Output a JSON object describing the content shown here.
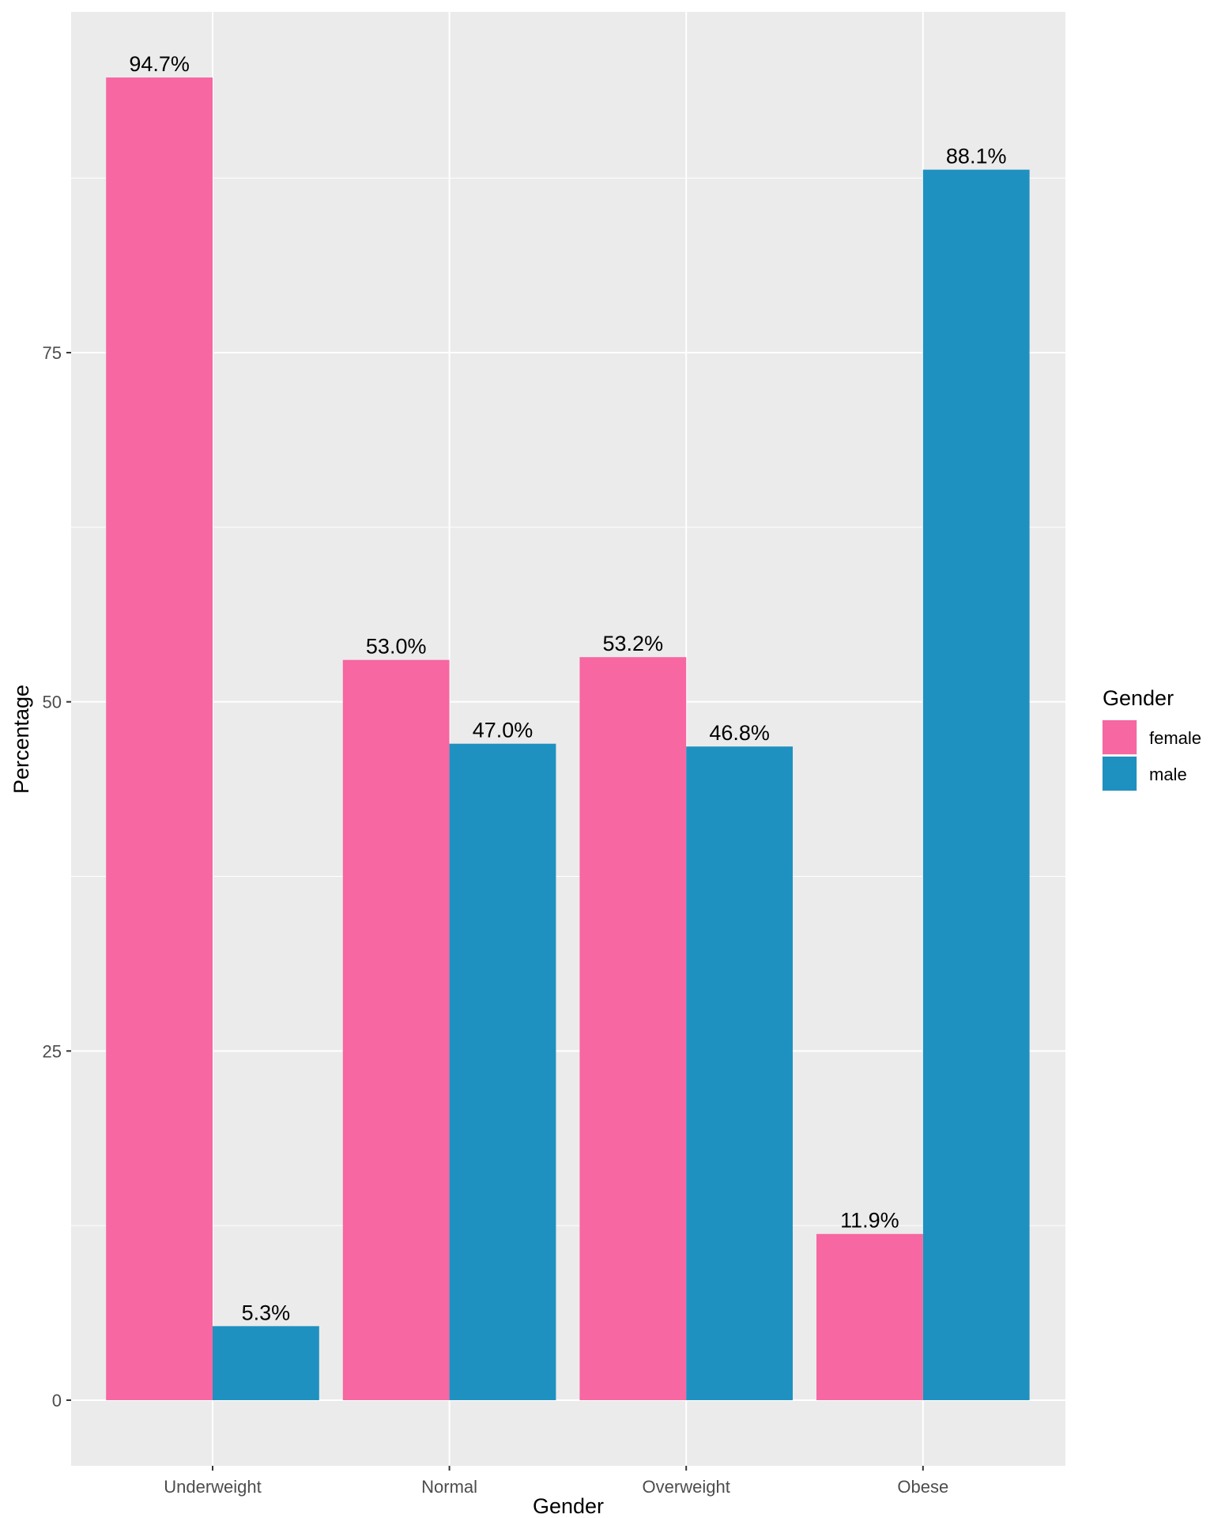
{
  "chart_data": {
    "type": "bar",
    "title": "",
    "xlabel": "Gender",
    "ylabel": "Percentage",
    "categories": [
      "Underweight",
      "Normal",
      "Overweight",
      "Obese"
    ],
    "series": [
      {
        "name": "female",
        "color": "#F767A1",
        "values": [
          94.7,
          53.0,
          53.2,
          11.9
        ],
        "labels": [
          "94.7%",
          "53.0%",
          "53.2%",
          "11.9%"
        ]
      },
      {
        "name": "male",
        "color": "#1F91C0",
        "values": [
          5.3,
          47.0,
          46.8,
          88.1
        ],
        "labels": [
          "5.3%",
          "47.0%",
          "46.8%",
          "88.1%"
        ]
      }
    ],
    "yticks": [
      0,
      25,
      50,
      75
    ],
    "ylim": [
      -4.7,
      99.4
    ],
    "grid": true,
    "legend": {
      "title": "Gender",
      "placement": "right"
    }
  }
}
